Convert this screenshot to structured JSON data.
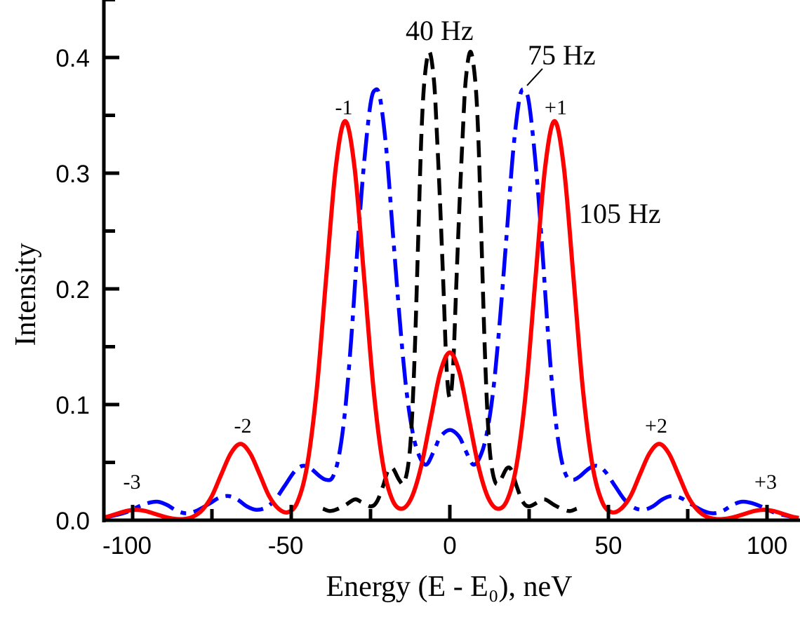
{
  "chart_data": {
    "type": "line",
    "title": "",
    "xlabel": "Energy (E - E₀), neV",
    "ylabel": "Intensity",
    "xlim": [
      -110,
      110
    ],
    "ylim": [
      0,
      0.45
    ],
    "xticks_major": [
      -100,
      -50,
      0,
      50,
      100
    ],
    "xtick_labels": [
      "-100",
      "-50",
      "0",
      "50",
      "100"
    ],
    "xticks_minor_step": 25,
    "yticks_major": [
      0.0,
      0.1,
      0.2,
      0.3,
      0.4
    ],
    "ytick_labels": [
      "0.0",
      "0.1",
      "0.2",
      "0.3",
      "0.4"
    ],
    "yticks_minor_step": 0.05,
    "grid": false,
    "legend": "none",
    "series": [
      {
        "name": "40 Hz",
        "color": "#000000",
        "style": "dashed",
        "points": [
          [
            -40,
            0.01
          ],
          [
            -38,
            0.008
          ],
          [
            -36,
            0.009
          ],
          [
            -33,
            0.013
          ],
          [
            -30,
            0.018
          ],
          [
            -28,
            0.016
          ],
          [
            -25,
            0.012
          ],
          [
            -23,
            0.016
          ],
          [
            -21,
            0.03
          ],
          [
            -19.5,
            0.043
          ],
          [
            -18,
            0.045
          ],
          [
            -16,
            0.035
          ],
          [
            -14.5,
            0.032
          ],
          [
            -13,
            0.05
          ],
          [
            -12,
            0.085
          ],
          [
            -11,
            0.15
          ],
          [
            -10,
            0.24
          ],
          [
            -9,
            0.33
          ],
          [
            -8,
            0.38
          ],
          [
            -6.5,
            0.405
          ],
          [
            -5,
            0.38
          ],
          [
            -4,
            0.33
          ],
          [
            -3,
            0.27
          ],
          [
            -2,
            0.2
          ],
          [
            -1,
            0.13
          ],
          [
            0,
            0.106
          ],
          [
            1,
            0.13
          ],
          [
            2,
            0.2
          ],
          [
            3,
            0.27
          ],
          [
            4,
            0.33
          ],
          [
            5,
            0.38
          ],
          [
            6.5,
            0.405
          ],
          [
            8,
            0.38
          ],
          [
            9,
            0.33
          ],
          [
            10,
            0.24
          ],
          [
            11,
            0.15
          ],
          [
            12,
            0.085
          ],
          [
            13,
            0.05
          ],
          [
            14.5,
            0.032
          ],
          [
            16,
            0.035
          ],
          [
            18,
            0.045
          ],
          [
            19.5,
            0.043
          ],
          [
            21,
            0.03
          ],
          [
            23,
            0.016
          ],
          [
            25,
            0.012
          ],
          [
            28,
            0.016
          ],
          [
            30,
            0.018
          ],
          [
            33,
            0.013
          ],
          [
            36,
            0.009
          ],
          [
            38,
            0.008
          ],
          [
            40,
            0.01
          ]
        ]
      },
      {
        "name": "75 Hz",
        "color": "#0000ff",
        "style": "dash-dot",
        "points": [
          [
            -110,
            0.002
          ],
          [
            -106,
            0.004
          ],
          [
            -102,
            0.007
          ],
          [
            -98,
            0.012
          ],
          [
            -95,
            0.015
          ],
          [
            -92,
            0.016
          ],
          [
            -89,
            0.013
          ],
          [
            -86,
            0.008
          ],
          [
            -83,
            0.006
          ],
          [
            -80,
            0.008
          ],
          [
            -76,
            0.014
          ],
          [
            -73,
            0.019
          ],
          [
            -70,
            0.021
          ],
          [
            -67,
            0.018
          ],
          [
            -64,
            0.012
          ],
          [
            -61,
            0.009
          ],
          [
            -58,
            0.011
          ],
          [
            -55,
            0.018
          ],
          [
            -52,
            0.03
          ],
          [
            -49,
            0.042
          ],
          [
            -46.5,
            0.047
          ],
          [
            -44,
            0.045
          ],
          [
            -41,
            0.038
          ],
          [
            -39,
            0.035
          ],
          [
            -37,
            0.037
          ],
          [
            -35,
            0.055
          ],
          [
            -33,
            0.095
          ],
          [
            -31,
            0.16
          ],
          [
            -29,
            0.24
          ],
          [
            -27,
            0.31
          ],
          [
            -25,
            0.36
          ],
          [
            -23.5,
            0.372
          ],
          [
            -22,
            0.365
          ],
          [
            -20,
            0.32
          ],
          [
            -18,
            0.25
          ],
          [
            -16,
            0.18
          ],
          [
            -14,
            0.12
          ],
          [
            -12,
            0.08
          ],
          [
            -10,
            0.058
          ],
          [
            -7.5,
            0.048
          ],
          [
            -5,
            0.06
          ],
          [
            -3,
            0.072
          ],
          [
            0,
            0.078
          ],
          [
            3,
            0.072
          ],
          [
            5,
            0.06
          ],
          [
            7.5,
            0.048
          ],
          [
            10,
            0.058
          ],
          [
            12,
            0.08
          ],
          [
            14,
            0.12
          ],
          [
            16,
            0.18
          ],
          [
            18,
            0.25
          ],
          [
            20,
            0.32
          ],
          [
            22,
            0.365
          ],
          [
            23.5,
            0.372
          ],
          [
            25,
            0.36
          ],
          [
            27,
            0.31
          ],
          [
            29,
            0.24
          ],
          [
            31,
            0.16
          ],
          [
            33,
            0.095
          ],
          [
            35,
            0.055
          ],
          [
            37,
            0.037
          ],
          [
            39,
            0.035
          ],
          [
            41,
            0.038
          ],
          [
            44,
            0.045
          ],
          [
            46.5,
            0.047
          ],
          [
            49,
            0.042
          ],
          [
            52,
            0.03
          ],
          [
            55,
            0.018
          ],
          [
            58,
            0.011
          ],
          [
            61,
            0.009
          ],
          [
            64,
            0.012
          ],
          [
            67,
            0.018
          ],
          [
            70,
            0.021
          ],
          [
            73,
            0.019
          ],
          [
            76,
            0.014
          ],
          [
            80,
            0.008
          ],
          [
            83,
            0.006
          ],
          [
            86,
            0.008
          ],
          [
            89,
            0.013
          ],
          [
            92,
            0.016
          ],
          [
            95,
            0.015
          ],
          [
            98,
            0.012
          ],
          [
            102,
            0.007
          ],
          [
            106,
            0.004
          ],
          [
            110,
            0.002
          ]
        ]
      },
      {
        "name": "105 Hz",
        "color": "#ff0000",
        "style": "solid",
        "points": [
          [
            -110,
            0.002
          ],
          [
            -108,
            0.003
          ],
          [
            -105,
            0.0055
          ],
          [
            -102,
            0.008
          ],
          [
            -99,
            0.009
          ],
          [
            -96,
            0.008
          ],
          [
            -93,
            0.0055
          ],
          [
            -90,
            0.003
          ],
          [
            -87,
            0.0013
          ],
          [
            -84,
            0.001
          ],
          [
            -81,
            0.003
          ],
          [
            -78,
            0.009
          ],
          [
            -75,
            0.021
          ],
          [
            -72,
            0.04
          ],
          [
            -69,
            0.058
          ],
          [
            -66,
            0.066
          ],
          [
            -63,
            0.058
          ],
          [
            -60,
            0.04
          ],
          [
            -57,
            0.021
          ],
          [
            -54,
            0.01
          ],
          [
            -51,
            0.007
          ],
          [
            -48,
            0.016
          ],
          [
            -45,
            0.047
          ],
          [
            -42,
            0.112
          ],
          [
            -39,
            0.209
          ],
          [
            -36,
            0.304
          ],
          [
            -33,
            0.345
          ],
          [
            -30,
            0.304
          ],
          [
            -27,
            0.209
          ],
          [
            -24,
            0.112
          ],
          [
            -21,
            0.047
          ],
          [
            -18,
            0.017
          ],
          [
            -15,
            0.01
          ],
          [
            -12,
            0.02
          ],
          [
            -9,
            0.047
          ],
          [
            -6,
            0.088
          ],
          [
            -3,
            0.128
          ],
          [
            0,
            0.145
          ],
          [
            3,
            0.128
          ],
          [
            6,
            0.088
          ],
          [
            9,
            0.047
          ],
          [
            12,
            0.02
          ],
          [
            15,
            0.01
          ],
          [
            18,
            0.017
          ],
          [
            21,
            0.047
          ],
          [
            24,
            0.112
          ],
          [
            27,
            0.209
          ],
          [
            30,
            0.304
          ],
          [
            33,
            0.345
          ],
          [
            36,
            0.304
          ],
          [
            39,
            0.209
          ],
          [
            42,
            0.112
          ],
          [
            45,
            0.047
          ],
          [
            48,
            0.016
          ],
          [
            51,
            0.007
          ],
          [
            54,
            0.01
          ],
          [
            57,
            0.021
          ],
          [
            60,
            0.04
          ],
          [
            63,
            0.058
          ],
          [
            66,
            0.066
          ],
          [
            69,
            0.058
          ],
          [
            72,
            0.04
          ],
          [
            75,
            0.021
          ],
          [
            78,
            0.009
          ],
          [
            81,
            0.003
          ],
          [
            84,
            0.001
          ],
          [
            87,
            0.0013
          ],
          [
            90,
            0.003
          ],
          [
            93,
            0.0055
          ],
          [
            96,
            0.008
          ],
          [
            99,
            0.009
          ],
          [
            102,
            0.008
          ],
          [
            105,
            0.0055
          ],
          [
            108,
            0.003
          ],
          [
            110,
            0.002
          ]
        ]
      }
    ],
    "annotations": {
      "hz40": "40 Hz",
      "hz75": "75 Hz",
      "hz105": "105 Hz",
      "order_m1": "-1",
      "order_p1": "+1",
      "order_m2": "-2",
      "order_p2": "+2",
      "order_m3": "-3",
      "order_p3": "+3"
    }
  }
}
